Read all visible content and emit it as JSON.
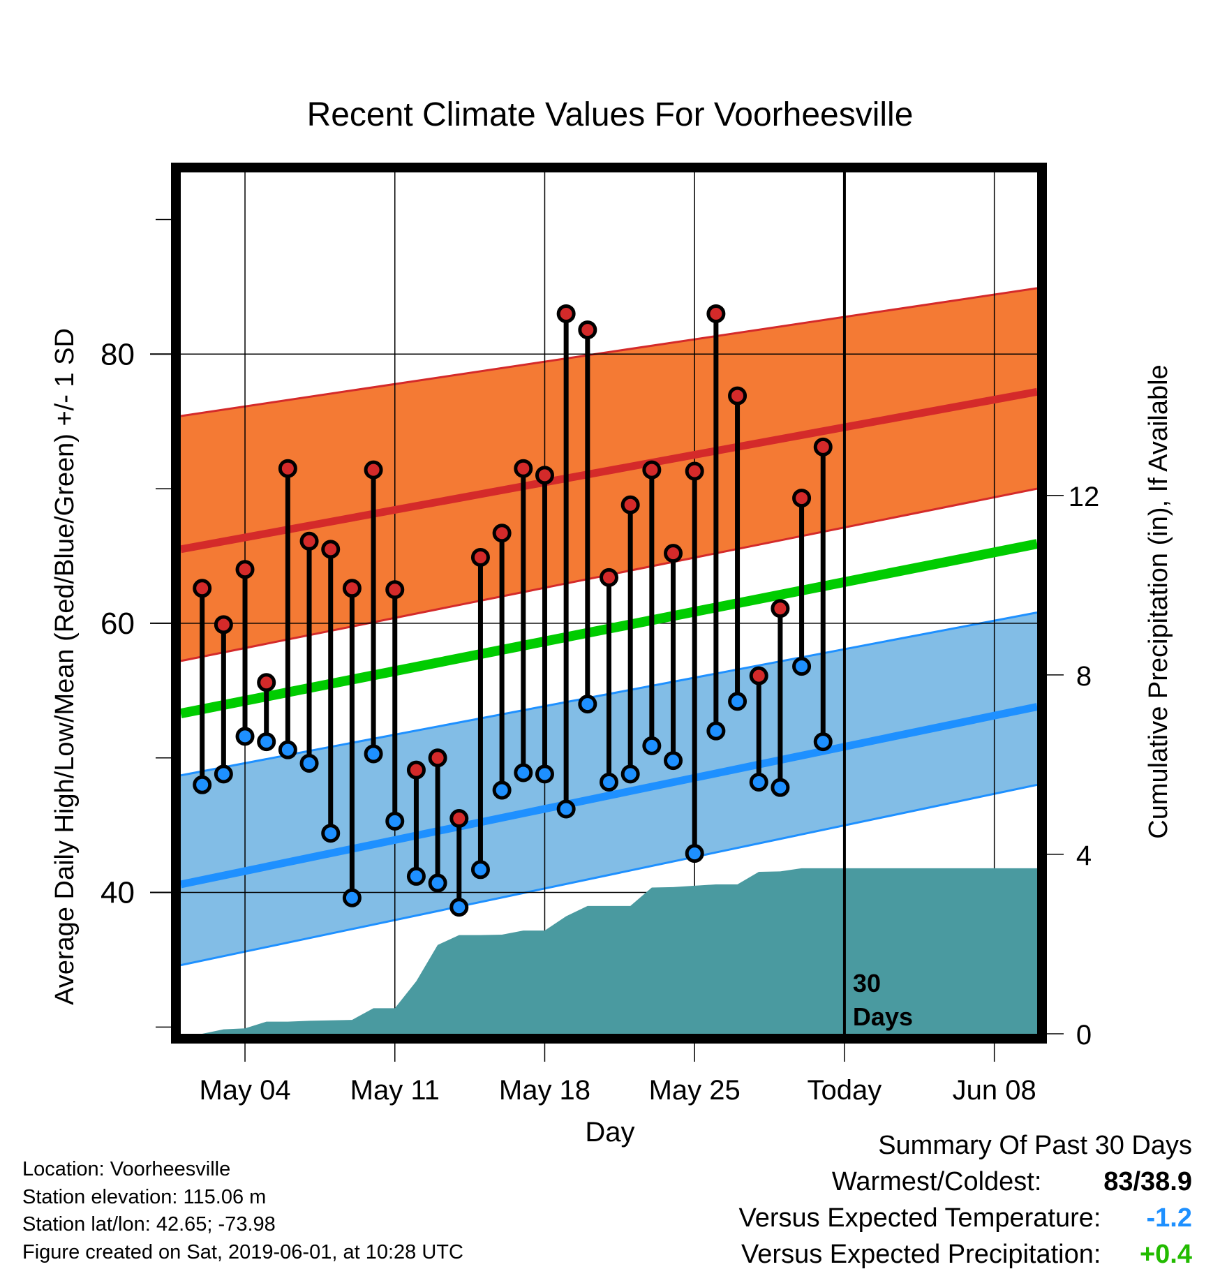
{
  "chart_data": {
    "type": "line",
    "title": "Recent Climate Values For Voorheesville",
    "xlabel": "Day",
    "ylabel": "Average Daily High/Low/Mean (Red/Blue/Green) +/- 1 SD",
    "y2label": "Cumulative Precipitation (in), If Available",
    "x_tick_labels": [
      "May 04",
      "May 11",
      "May 18",
      "May 25",
      "Today",
      "Jun 08"
    ],
    "x_tick_dates": [
      "2019-05-04",
      "2019-05-11",
      "2019-05-18",
      "2019-05-25",
      "2019-06-01",
      "2019-06-08"
    ],
    "xlim": [
      "2019-05-01",
      "2019-06-10"
    ],
    "ylim": [
      29.5,
      93.5
    ],
    "y_ticks": [
      40,
      60,
      80
    ],
    "y2lim": [
      0,
      19.2
    ],
    "y2_ticks": [
      0,
      4,
      8,
      12
    ],
    "grid": true,
    "today": "2019-06-01",
    "today_label_line1": "30",
    "today_label_line2": "Days",
    "normal_high": {
      "x": [
        "2019-05-01",
        "2019-06-10"
      ],
      "mean": [
        65.5,
        77.2
      ],
      "upper": [
        75.4,
        84.9
      ],
      "lower": [
        57.2,
        70.0
      ],
      "color": "#d42a2a",
      "band_color": "#f47a34"
    },
    "normal_low": {
      "x": [
        "2019-05-01",
        "2019-06-10"
      ],
      "mean": [
        40.6,
        53.8
      ],
      "upper": [
        48.7,
        60.8
      ],
      "lower": [
        34.6,
        48.0
      ],
      "color": "#1e90ff",
      "band_color": "#82bde6"
    },
    "normal_mean": {
      "x": [
        "2019-05-01",
        "2019-06-10"
      ],
      "values": [
        53.3,
        65.9
      ],
      "color": "#00cc00"
    },
    "daily": {
      "dates": [
        "2019-05-02",
        "2019-05-03",
        "2019-05-04",
        "2019-05-05",
        "2019-05-06",
        "2019-05-07",
        "2019-05-08",
        "2019-05-09",
        "2019-05-10",
        "2019-05-11",
        "2019-05-12",
        "2019-05-13",
        "2019-05-14",
        "2019-05-15",
        "2019-05-16",
        "2019-05-17",
        "2019-05-18",
        "2019-05-19",
        "2019-05-20",
        "2019-05-21",
        "2019-05-22",
        "2019-05-23",
        "2019-05-24",
        "2019-05-25",
        "2019-05-26",
        "2019-05-27",
        "2019-05-28",
        "2019-05-29",
        "2019-05-30",
        "2019-05-31"
      ],
      "high": [
        62.6,
        59.9,
        64.0,
        55.6,
        71.5,
        66.1,
        65.5,
        62.6,
        71.4,
        62.5,
        49.1,
        50.0,
        45.5,
        64.9,
        66.7,
        71.5,
        71.0,
        83.0,
        81.8,
        63.4,
        68.8,
        71.4,
        65.2,
        71.3,
        83.0,
        76.9,
        56.1,
        61.1,
        69.3,
        73.1
      ],
      "low": [
        48.0,
        48.8,
        51.6,
        51.2,
        50.6,
        49.6,
        44.4,
        39.6,
        50.3,
        45.3,
        41.2,
        40.7,
        38.9,
        41.7,
        47.6,
        48.9,
        48.8,
        46.2,
        54.0,
        48.2,
        48.8,
        50.9,
        49.8,
        42.9,
        52.0,
        54.2,
        48.2,
        47.8,
        56.8,
        51.2
      ],
      "high_color": "#d42a2a",
      "low_color": "#1e90ff"
    },
    "cumulative_precipitation": {
      "x": [
        "2019-05-02",
        "2019-05-03",
        "2019-05-04",
        "2019-05-05",
        "2019-05-06",
        "2019-05-07",
        "2019-05-08",
        "2019-05-09",
        "2019-05-10",
        "2019-05-11",
        "2019-05-12",
        "2019-05-13",
        "2019-05-14",
        "2019-05-15",
        "2019-05-16",
        "2019-05-17",
        "2019-05-18",
        "2019-05-19",
        "2019-05-20",
        "2019-05-21",
        "2019-05-22",
        "2019-05-23",
        "2019-05-24",
        "2019-05-25",
        "2019-05-26",
        "2019-05-27",
        "2019-05-28",
        "2019-05-29",
        "2019-05-30",
        "2019-05-31",
        "2019-06-10"
      ],
      "values": [
        0.0,
        0.1,
        0.12,
        0.27,
        0.27,
        0.29,
        0.3,
        0.31,
        0.57,
        0.57,
        1.17,
        1.98,
        2.2,
        2.2,
        2.21,
        2.3,
        2.3,
        2.62,
        2.85,
        2.85,
        2.85,
        3.26,
        3.27,
        3.3,
        3.33,
        3.33,
        3.61,
        3.62,
        3.69,
        3.69,
        3.69
      ],
      "color": "#4a9aa0"
    }
  },
  "info": {
    "location": "Location: Voorheesville",
    "elevation": "Station elevation: 115.06 m",
    "latlon": "Station lat/lon: 42.65; -73.98",
    "created": "Figure created on Sat, 2019-06-01, at 10:28 UTC"
  },
  "summary": {
    "title": "Summary Of Past 30 Days",
    "warmest_label": "Warmest/Coldest:",
    "warmest_value": "83/38.9",
    "temp_label": "Versus Expected Temperature:",
    "temp_value": "-1.2",
    "temp_color": "#1e90ff",
    "precip_label": "Versus Expected Precipitation:",
    "precip_value": "+0.4",
    "precip_color": "#22bb00"
  }
}
